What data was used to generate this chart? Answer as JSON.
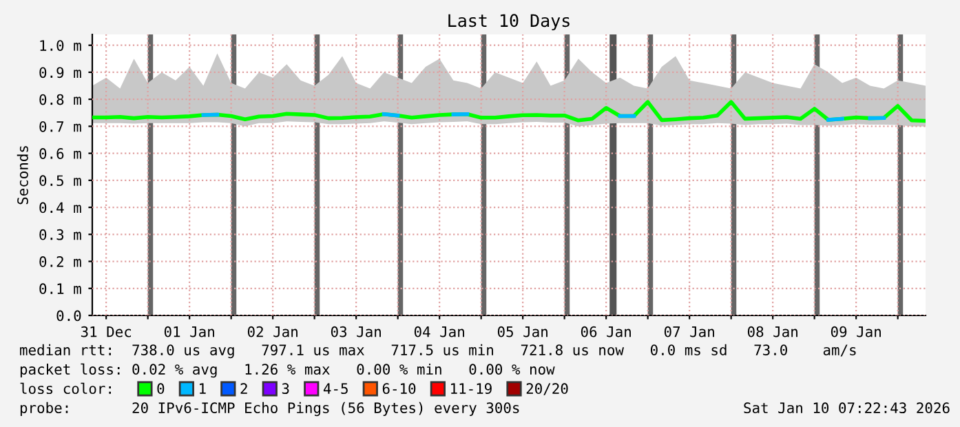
{
  "chart_data": {
    "type": "line",
    "title": "Last 10 Days",
    "ylabel": "Seconds",
    "legend_title": "loss color:",
    "x": [
      "2025-12-31T08:00",
      "2025-12-31T12:00",
      "2025-12-31T16:00",
      "2025-12-31T20:00",
      "2026-01-01T00:00",
      "2026-01-01T04:00",
      "2026-01-01T08:00",
      "2026-01-01T12:00",
      "2026-01-01T16:00",
      "2026-01-01T20:00",
      "2026-01-02T00:00",
      "2026-01-02T04:00",
      "2026-01-02T08:00",
      "2026-01-02T12:00",
      "2026-01-02T16:00",
      "2026-01-02T20:00",
      "2026-01-03T00:00",
      "2026-01-03T04:00",
      "2026-01-03T08:00",
      "2026-01-03T12:00",
      "2026-01-03T16:00",
      "2026-01-03T20:00",
      "2026-01-04T00:00",
      "2026-01-04T04:00",
      "2026-01-04T08:00",
      "2026-01-04T12:00",
      "2026-01-04T16:00",
      "2026-01-04T20:00",
      "2026-01-05T00:00",
      "2026-01-05T04:00",
      "2026-01-05T08:00",
      "2026-01-05T12:00",
      "2026-01-05T16:00",
      "2026-01-05T20:00",
      "2026-01-06T00:00",
      "2026-01-06T04:00",
      "2026-01-06T08:00",
      "2026-01-06T12:00",
      "2026-01-06T16:00",
      "2026-01-06T20:00",
      "2026-01-07T00:00",
      "2026-01-07T04:00",
      "2026-01-07T08:00",
      "2026-01-07T12:00",
      "2026-01-07T16:00",
      "2026-01-07T20:00",
      "2026-01-08T00:00",
      "2026-01-08T04:00",
      "2026-01-08T08:00",
      "2026-01-08T12:00",
      "2026-01-08T16:00",
      "2026-01-08T20:00",
      "2026-01-09T00:00",
      "2026-01-09T04:00",
      "2026-01-09T08:00",
      "2026-01-09T12:00",
      "2026-01-09T16:00",
      "2026-01-09T20:00",
      "2026-01-10T00:00",
      "2026-01-10T04:00",
      "2026-01-10T08:00"
    ],
    "series": [
      {
        "name": "0",
        "color": "#00ff00",
        "values": [
          0.733,
          0.733,
          0.735,
          0.73,
          0.735,
          0.733,
          0.735,
          0.737,
          0.742,
          0.743,
          0.738,
          0.726,
          0.736,
          0.738,
          0.746,
          0.744,
          0.742,
          0.73,
          0.731,
          0.734,
          0.736,
          0.745,
          0.74,
          0.732,
          0.737,
          0.742,
          0.744,
          0.745,
          0.732,
          0.732,
          0.737,
          0.741,
          0.742,
          0.74,
          0.74,
          0.722,
          0.728,
          0.768,
          0.738,
          0.738,
          0.79,
          0.723,
          0.726,
          0.73,
          0.732,
          0.74,
          0.79,
          0.728,
          0.73,
          0.732,
          0.734,
          0.728,
          0.765,
          0.724,
          0.728,
          0.733,
          0.73,
          0.731,
          0.775,
          0.722,
          0.72
        ],
        "lower": [
          0.712,
          0.712,
          0.712,
          0.71,
          0.712,
          0.712,
          0.712,
          0.712,
          0.715,
          0.715,
          0.712,
          0.7,
          0.712,
          0.712,
          0.718,
          0.716,
          0.715,
          0.708,
          0.708,
          0.71,
          0.712,
          0.718,
          0.714,
          0.708,
          0.712,
          0.715,
          0.716,
          0.718,
          0.708,
          0.708,
          0.712,
          0.715,
          0.716,
          0.714,
          0.714,
          0.7,
          0.705,
          0.71,
          0.712,
          0.712,
          0.712,
          0.702,
          0.705,
          0.708,
          0.708,
          0.712,
          0.71,
          0.705,
          0.708,
          0.708,
          0.71,
          0.705,
          0.705,
          0.702,
          0.705,
          0.708,
          0.706,
          0.706,
          0.705,
          0.7,
          0.7
        ],
        "upper": [
          0.85,
          0.88,
          0.84,
          0.95,
          0.86,
          0.9,
          0.87,
          0.92,
          0.85,
          0.97,
          0.86,
          0.84,
          0.9,
          0.88,
          0.93,
          0.87,
          0.85,
          0.89,
          0.96,
          0.86,
          0.84,
          0.9,
          0.88,
          0.86,
          0.92,
          0.95,
          0.87,
          0.86,
          0.84,
          0.9,
          0.88,
          0.86,
          0.94,
          0.85,
          0.87,
          0.95,
          0.9,
          0.86,
          0.88,
          0.85,
          0.84,
          0.92,
          0.96,
          0.87,
          0.86,
          0.85,
          0.84,
          0.9,
          0.88,
          0.86,
          0.85,
          0.84,
          0.93,
          0.9,
          0.86,
          0.88,
          0.85,
          0.84,
          0.87,
          0.86,
          0.85
        ]
      },
      {
        "name": "1",
        "color": "#00b8ff",
        "values": [
          null,
          null,
          null,
          null,
          null,
          null,
          null,
          null,
          0.742,
          0.743,
          null,
          null,
          null,
          null,
          null,
          null,
          null,
          null,
          null,
          null,
          null,
          0.745,
          0.74,
          null,
          null,
          null,
          0.744,
          0.745,
          null,
          null,
          null,
          null,
          null,
          null,
          null,
          null,
          null,
          null,
          0.738,
          0.738,
          null,
          null,
          null,
          null,
          null,
          null,
          null,
          null,
          null,
          null,
          null,
          null,
          null,
          0.724,
          0.728,
          null,
          0.73,
          0.731,
          null,
          null,
          null
        ]
      },
      {
        "name": "2",
        "color": "#0059ff",
        "values": [
          null,
          null,
          null,
          null,
          null,
          null,
          null,
          null,
          null,
          null,
          null,
          null,
          null,
          null,
          null,
          null,
          null,
          null,
          null,
          null,
          null,
          null,
          null,
          null,
          null,
          null,
          null,
          null,
          null,
          null,
          null,
          null,
          null,
          null,
          null,
          null,
          null,
          null,
          null,
          null,
          null,
          null,
          null,
          null,
          null,
          null,
          null,
          null,
          null,
          null,
          null,
          null,
          null,
          null,
          null,
          null,
          null,
          null,
          null,
          null,
          null
        ]
      },
      {
        "name": "3",
        "color": "#7e00ff",
        "values": [
          null,
          null,
          null,
          null,
          null,
          null,
          null,
          null,
          null,
          null,
          null,
          null,
          null,
          null,
          null,
          null,
          null,
          null,
          null,
          null,
          null,
          null,
          null,
          null,
          null,
          null,
          null,
          null,
          null,
          null,
          null,
          null,
          null,
          null,
          null,
          null,
          null,
          null,
          null,
          null,
          null,
          null,
          null,
          null,
          null,
          null,
          null,
          null,
          null,
          null,
          null,
          null,
          null,
          null,
          null,
          null,
          null,
          null,
          null,
          null,
          null
        ]
      },
      {
        "name": "4-5",
        "color": "#ff00ff",
        "values": [
          null,
          null,
          null,
          null,
          null,
          null,
          null,
          null,
          null,
          null,
          null,
          null,
          null,
          null,
          null,
          null,
          null,
          null,
          null,
          null,
          null,
          null,
          null,
          null,
          null,
          null,
          null,
          null,
          null,
          null,
          null,
          null,
          null,
          null,
          null,
          null,
          null,
          null,
          null,
          null,
          null,
          null,
          null,
          null,
          null,
          null,
          null,
          null,
          null,
          null,
          null,
          null,
          null,
          null,
          null,
          null,
          null,
          null,
          null,
          null,
          null
        ]
      },
      {
        "name": "6-10",
        "color": "#ff5500",
        "values": [
          null,
          null,
          null,
          null,
          null,
          null,
          null,
          null,
          null,
          null,
          null,
          null,
          null,
          null,
          null,
          null,
          null,
          null,
          null,
          null,
          null,
          null,
          null,
          null,
          null,
          null,
          null,
          null,
          null,
          null,
          null,
          null,
          null,
          null,
          null,
          null,
          null,
          null,
          null,
          null,
          null,
          null,
          null,
          null,
          null,
          null,
          null,
          null,
          null,
          null,
          null,
          null,
          null,
          null,
          null,
          null,
          null,
          null,
          null,
          null,
          null
        ]
      },
      {
        "name": "11-19",
        "color": "#ff0000",
        "values": [
          null,
          null,
          null,
          null,
          null,
          null,
          null,
          null,
          null,
          null,
          null,
          null,
          null,
          null,
          null,
          null,
          null,
          null,
          null,
          null,
          null,
          null,
          null,
          null,
          null,
          null,
          null,
          null,
          null,
          null,
          null,
          null,
          null,
          null,
          null,
          null,
          null,
          null,
          null,
          null,
          null,
          null,
          null,
          null,
          null,
          null,
          null,
          null,
          null,
          null,
          null,
          null,
          null,
          null,
          null,
          null,
          null,
          null,
          null,
          null,
          null
        ]
      },
      {
        "name": "20/20",
        "color": "#a10000",
        "values": [
          null,
          null,
          null,
          null,
          null,
          null,
          null,
          null,
          null,
          null,
          null,
          null,
          null,
          null,
          null,
          null,
          null,
          null,
          null,
          null,
          null,
          null,
          null,
          null,
          null,
          null,
          null,
          null,
          null,
          null,
          null,
          null,
          null,
          null,
          null,
          null,
          null,
          null,
          null,
          null,
          null,
          null,
          null,
          null,
          null,
          null,
          null,
          null,
          null,
          null,
          null,
          null,
          null,
          null,
          null,
          null,
          null,
          null,
          null,
          null,
          null
        ]
      }
    ],
    "bands": [
      {
        "axis": "x",
        "from": "2026-01-01T00:00",
        "to": "2026-01-01T01:30",
        "color": "#666666"
      },
      {
        "axis": "x",
        "from": "2026-01-02T00:00",
        "to": "2026-01-02T01:30",
        "color": "#666666"
      },
      {
        "axis": "x",
        "from": "2026-01-03T00:00",
        "to": "2026-01-03T01:30",
        "color": "#666666"
      },
      {
        "axis": "x",
        "from": "2026-01-04T00:00",
        "to": "2026-01-04T01:30",
        "color": "#666666"
      },
      {
        "axis": "x",
        "from": "2026-01-05T00:00",
        "to": "2026-01-05T01:30",
        "color": "#666666"
      },
      {
        "axis": "x",
        "from": "2026-01-06T00:00",
        "to": "2026-01-06T01:30",
        "color": "#666666"
      },
      {
        "axis": "x",
        "from": "2026-01-06T13:00",
        "to": "2026-01-06T15:00",
        "color": "#555555"
      },
      {
        "axis": "x",
        "from": "2026-01-07T00:00",
        "to": "2026-01-07T01:30",
        "color": "#666666"
      },
      {
        "axis": "x",
        "from": "2026-01-08T00:00",
        "to": "2026-01-08T01:30",
        "color": "#666666"
      },
      {
        "axis": "x",
        "from": "2026-01-09T00:00",
        "to": "2026-01-09T01:30",
        "color": "#666666"
      },
      {
        "axis": "x",
        "from": "2026-01-10T00:00",
        "to": "2026-01-10T01:30",
        "color": "#666666"
      }
    ],
    "xlim": [
      "2025-12-31T08:00",
      "2026-01-10T08:00"
    ],
    "xticks": [
      {
        "value": "2025-12-31T12:00",
        "label": "31 Dec"
      },
      {
        "value": "2026-01-01T00:00",
        "label": null
      },
      {
        "value": "2026-01-01T12:00",
        "label": "01 Jan"
      },
      {
        "value": "2026-01-02T00:00",
        "label": null
      },
      {
        "value": "2026-01-02T12:00",
        "label": "02 Jan"
      },
      {
        "value": "2026-01-03T00:00",
        "label": null
      },
      {
        "value": "2026-01-03T12:00",
        "label": "03 Jan"
      },
      {
        "value": "2026-01-04T00:00",
        "label": null
      },
      {
        "value": "2026-01-04T12:00",
        "label": "04 Jan"
      },
      {
        "value": "2026-01-05T00:00",
        "label": null
      },
      {
        "value": "2026-01-05T12:00",
        "label": "05 Jan"
      },
      {
        "value": "2026-01-06T00:00",
        "label": null
      },
      {
        "value": "2026-01-06T12:00",
        "label": "06 Jan"
      },
      {
        "value": "2026-01-07T00:00",
        "label": null
      },
      {
        "value": "2026-01-07T12:00",
        "label": "07 Jan"
      },
      {
        "value": "2026-01-08T00:00",
        "label": null
      },
      {
        "value": "2026-01-08T12:00",
        "label": "08 Jan"
      },
      {
        "value": "2026-01-09T00:00",
        "label": null
      },
      {
        "value": "2026-01-09T12:00",
        "label": "09 Jan"
      },
      {
        "value": "2026-01-10T00:00",
        "label": null
      }
    ],
    "ylim": [
      0,
      1.04
    ],
    "yticks": [
      {
        "value": 0,
        "label": "0.0"
      },
      {
        "value": 0.1,
        "label": "0.1 m"
      },
      {
        "value": 0.2,
        "label": "0.2 m"
      },
      {
        "value": 0.3,
        "label": "0.3 m"
      },
      {
        "value": 0.4,
        "label": "0.4 m"
      },
      {
        "value": 0.5,
        "label": "0.5 m"
      },
      {
        "value": 0.6,
        "label": "0.6 m"
      },
      {
        "value": 0.7,
        "label": "0.7 m"
      },
      {
        "value": 0.8,
        "label": "0.8 m"
      },
      {
        "value": 0.9,
        "label": "0.9 m"
      },
      {
        "value": 1.0,
        "label": "1.0 m"
      }
    ],
    "grid": true,
    "legend": "bottom",
    "marker": "none",
    "line_style": "solid",
    "annotations": [
      "median rtt:  738.0 us avg   797.1 us max   717.5 us min   721.8 us now   0.0 ms sd   73.0    am/s",
      "packet loss: 0.02 % avg   1.26 % max   0.00 % min   0.00 % now",
      "probe:       20 IPv6-ICMP Echo Pings (56 Bytes) every 300s",
      "Sat Jan 10 07:22:43 2026"
    ]
  }
}
